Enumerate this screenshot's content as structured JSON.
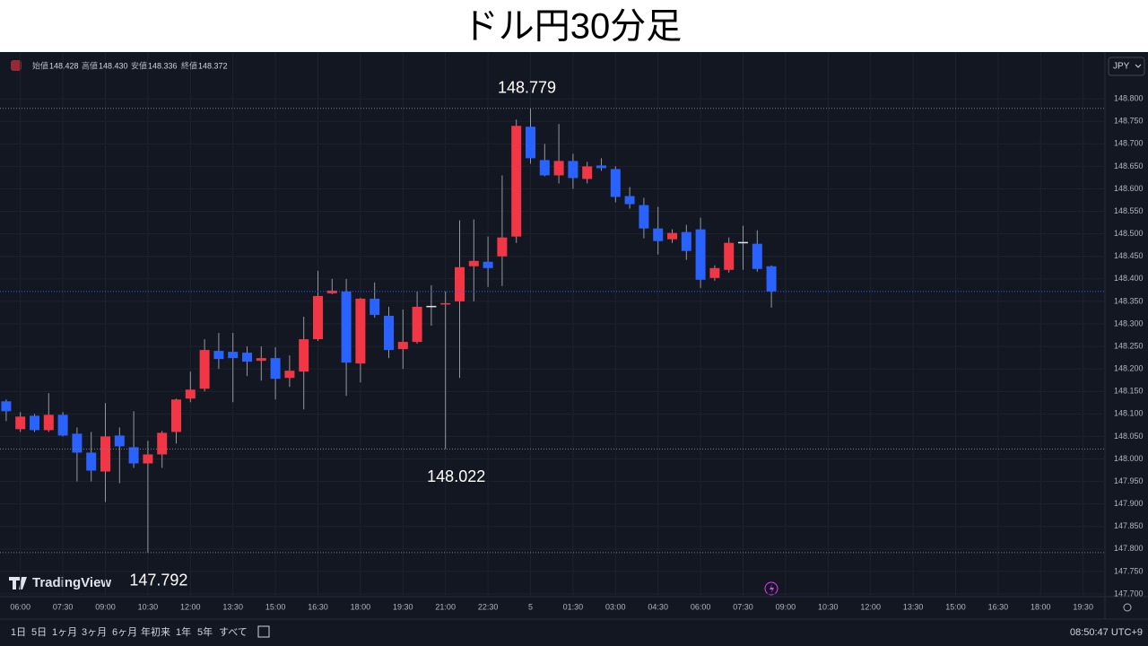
{
  "title": "ドル円30分足",
  "chart_data": {
    "type": "candlestick",
    "categories": [
      null,
      "06:00",
      null,
      null,
      "07:30",
      null,
      null,
      "09:00",
      null,
      null,
      "10:30",
      null,
      null,
      "12:00",
      null,
      null,
      "13:30",
      null,
      null,
      "15:00",
      null,
      null,
      "16:30",
      null,
      null,
      "18:00",
      null,
      null,
      "19:30",
      null,
      null,
      "21:00",
      null,
      null,
      "22:30",
      null,
      null,
      "5",
      null,
      null,
      "01:30",
      null,
      null,
      "03:00",
      null,
      null,
      "04:30",
      null,
      null,
      "06:00",
      null,
      null,
      "07:30",
      null,
      null,
      "09:00",
      null,
      null,
      "10:30",
      null,
      null,
      "12:00",
      null,
      null,
      "13:30",
      null,
      null,
      "15:00",
      null,
      null,
      "16:30",
      null,
      null,
      "18:00",
      null,
      null,
      "19:30"
    ],
    "open": [
      148.128,
      148.066,
      148.096,
      148.064,
      148.098,
      148.056,
      148.014,
      147.972,
      148.052,
      148.026,
      147.99,
      148.01,
      148.06,
      148.134,
      148.156,
      148.24,
      148.238,
      148.236,
      148.218,
      148.224,
      148.18,
      148.194,
      148.266,
      148.368,
      148.372,
      148.212,
      148.356,
      148.318,
      148.244,
      148.26,
      148.34,
      148.344,
      148.35,
      148.428,
      148.438,
      148.45,
      148.494,
      148.738,
      148.664,
      148.63,
      148.662,
      148.622,
      148.652,
      148.644,
      148.584,
      148.564,
      148.512,
      148.488,
      148.504,
      148.51,
      148.402,
      148.42,
      148.482,
      148.478,
      148.428,
      null,
      null,
      null,
      null,
      null,
      null,
      null,
      null,
      null,
      null,
      null,
      null,
      null,
      null,
      null,
      null,
      null,
      null,
      null,
      null,
      null,
      null
    ],
    "high": [
      148.132,
      148.104,
      148.1,
      148.146,
      148.104,
      148.07,
      148.06,
      148.124,
      148.07,
      148.106,
      148.04,
      148.062,
      148.134,
      148.194,
      148.266,
      148.28,
      148.28,
      148.25,
      148.25,
      148.248,
      148.23,
      148.316,
      148.418,
      148.4,
      148.4,
      148.358,
      148.392,
      148.338,
      148.332,
      148.372,
      148.386,
      148.372,
      148.53,
      148.532,
      148.494,
      148.63,
      148.754,
      148.779,
      148.7,
      148.744,
      148.678,
      148.66,
      148.668,
      148.65,
      148.604,
      148.58,
      148.56,
      148.51,
      148.52,
      148.536,
      148.43,
      148.492,
      148.518,
      148.508,
      148.43,
      null,
      null,
      null,
      null,
      null,
      null,
      null,
      null,
      null,
      null,
      null,
      null,
      null,
      null,
      null,
      null,
      null,
      null,
      null,
      null,
      null,
      null
    ],
    "low": [
      148.084,
      148.06,
      148.06,
      148.06,
      148.05,
      147.95,
      147.95,
      147.904,
      147.946,
      147.98,
      147.792,
      147.98,
      148.034,
      148.126,
      148.15,
      148.2,
      148.126,
      148.184,
      148.174,
      148.132,
      148.16,
      148.11,
      148.262,
      148.366,
      148.14,
      148.17,
      148.314,
      148.224,
      148.2,
      148.256,
      148.296,
      148.022,
      148.18,
      148.35,
      148.382,
      148.384,
      148.48,
      148.656,
      148.628,
      148.612,
      148.6,
      148.612,
      148.64,
      148.57,
      148.556,
      148.49,
      148.454,
      148.48,
      148.442,
      148.38,
      148.396,
      148.414,
      148.42,
      148.416,
      148.336,
      null,
      null,
      null,
      null,
      null,
      null,
      null,
      null,
      null,
      null,
      null,
      null,
      null,
      null,
      null,
      null,
      null,
      null,
      null,
      null,
      null,
      null
    ],
    "close": [
      148.106,
      148.094,
      148.064,
      148.098,
      148.052,
      148.014,
      147.974,
      148.05,
      148.028,
      147.99,
      148.01,
      148.058,
      148.132,
      148.154,
      148.242,
      148.222,
      148.224,
      148.216,
      148.224,
      148.178,
      148.196,
      148.266,
      148.362,
      148.374,
      148.214,
      148.356,
      148.32,
      148.242,
      148.26,
      148.338,
      148.34,
      148.346,
      148.426,
      148.44,
      148.424,
      148.492,
      148.74,
      148.668,
      148.63,
      148.662,
      148.624,
      148.65,
      148.646,
      148.582,
      148.566,
      148.512,
      148.484,
      148.502,
      148.462,
      148.398,
      148.424,
      148.48,
      148.482,
      148.422,
      148.372,
      null,
      null,
      null,
      null,
      null,
      null,
      null,
      null,
      null,
      null,
      null,
      null,
      null,
      null,
      null,
      null,
      null,
      null,
      null,
      null,
      null,
      null
    ],
    "up_color": "#f23645",
    "down_color": "#2962ff",
    "flat_color": "#e0e3eb",
    "ylim": [
      147.694,
      148.896
    ],
    "yticks": [
      {
        "value": 148.8,
        "label": "148.800"
      },
      {
        "value": 148.75,
        "label": "148.750"
      },
      {
        "value": 148.7,
        "label": "148.700"
      },
      {
        "value": 148.65,
        "label": "148.650"
      },
      {
        "value": 148.6,
        "label": "148.600"
      },
      {
        "value": 148.55,
        "label": "148.550"
      },
      {
        "value": 148.5,
        "label": "148.500"
      },
      {
        "value": 148.45,
        "label": "148.450"
      },
      {
        "value": 148.4,
        "label": "148.400"
      },
      {
        "value": 148.35,
        "label": "148.350"
      },
      {
        "value": 148.3,
        "label": "148.300"
      },
      {
        "value": 148.25,
        "label": "148.250"
      },
      {
        "value": 148.2,
        "label": "148.200"
      },
      {
        "value": 148.15,
        "label": "148.150"
      },
      {
        "value": 148.1,
        "label": "148.100"
      },
      {
        "value": 148.05,
        "label": "148.050"
      },
      {
        "value": 148.0,
        "label": "148.000"
      },
      {
        "value": 147.95,
        "label": "147.950"
      },
      {
        "value": 147.9,
        "label": "147.900"
      },
      {
        "value": 147.85,
        "label": "147.850"
      },
      {
        "value": 147.8,
        "label": "147.800"
      },
      {
        "value": 147.75,
        "label": "147.750"
      },
      {
        "value": 147.7,
        "label": "147.700"
      }
    ],
    "grid": true,
    "annotations": [
      148.779,
      148.022,
      147.792
    ],
    "legend": {
      "labels": [
        "始値",
        "高値",
        "安値",
        "終値"
      ],
      "value_labels": [
        "148.428",
        "148.430",
        "148.336",
        "148.372"
      ]
    }
  },
  "currency": "JPY",
  "logo": "TradingView",
  "ranges": [
    "1日",
    "5日",
    "1ヶ月",
    "3ヶ月",
    "6ヶ月",
    "年初来",
    "1年",
    "5年",
    "すべて"
  ],
  "clock": "08:50:47 UTC+9"
}
